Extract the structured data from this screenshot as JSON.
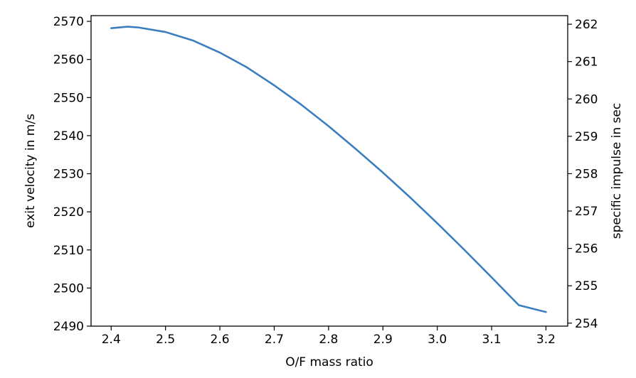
{
  "chart_data": {
    "type": "line",
    "title": "",
    "xlabel": "O/F mass ratio",
    "ylabel": "exit velocity in m/s",
    "ylabel_right": "specific impulse in sec",
    "xlim": [
      2.363,
      3.24
    ],
    "ylim": [
      2490,
      2571.5
    ],
    "ylim_right": [
      253.92,
      262.23
    ],
    "x_ticks": [
      "2.4",
      "2.5",
      "2.6",
      "2.7",
      "2.8",
      "2.9",
      "3.0",
      "3.1",
      "3.2"
    ],
    "y_ticks": [
      "2490",
      "2500",
      "2510",
      "2520",
      "2530",
      "2540",
      "2550",
      "2560",
      "2570"
    ],
    "y_ticks_right": [
      "254",
      "255",
      "256",
      "257",
      "258",
      "259",
      "260",
      "261",
      "262"
    ],
    "grid": false,
    "legend": "none",
    "line_color": "#3a7ebf",
    "series": [
      {
        "x": [
          2.4,
          2.43,
          2.45,
          2.5,
          2.55,
          2.6,
          2.65,
          2.7,
          2.75,
          2.8,
          2.85,
          2.9,
          2.95,
          3.0,
          3.05,
          3.1,
          3.15,
          3.2
        ],
        "values": [
          2568.2,
          2568.6,
          2568.4,
          2567.2,
          2565.0,
          2561.8,
          2557.9,
          2553.2,
          2548.1,
          2542.5,
          2536.5,
          2530.3,
          2523.8,
          2517.0,
          2510.0,
          2502.8,
          2495.5,
          2493.7
        ]
      }
    ]
  }
}
